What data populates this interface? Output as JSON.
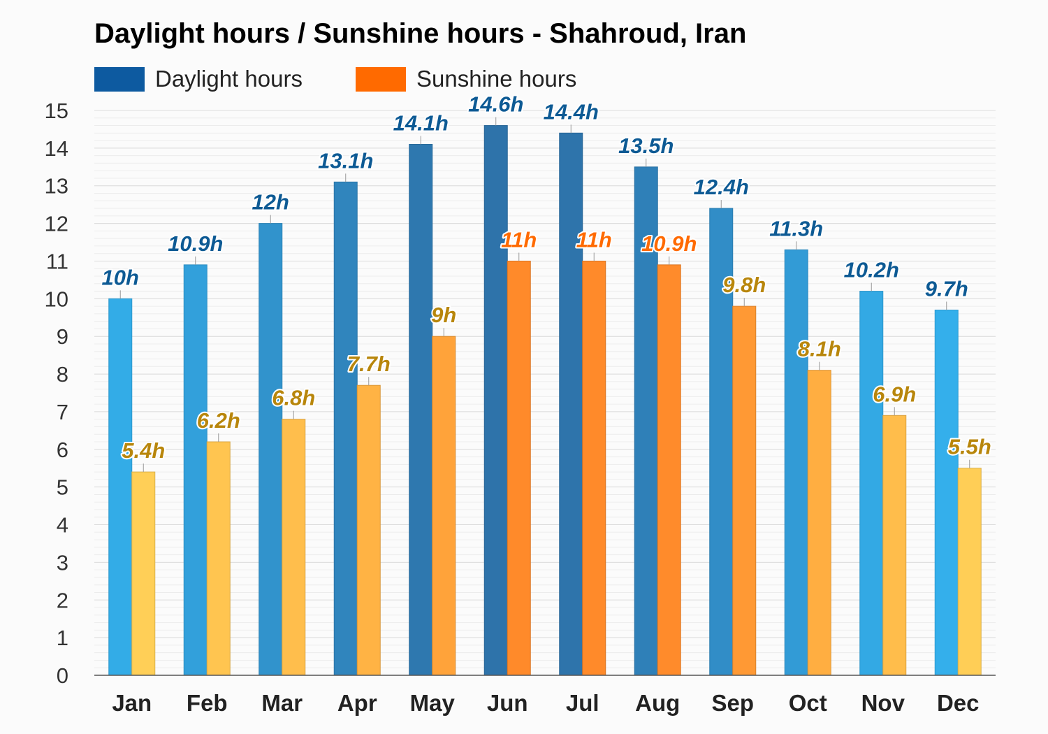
{
  "colors": {
    "daylight": "#0d5aa0",
    "sunshine": "#ff6a00",
    "daylight_label": "#0d5a94",
    "sunshine_label": "#b8860b",
    "sunshine_label_hot": "#ff6a00"
  },
  "chart_data": {
    "type": "bar",
    "title": "Daylight hours / Sunshine hours - Shahroud, Iran",
    "categories": [
      "Jan",
      "Feb",
      "Mar",
      "Apr",
      "May",
      "Jun",
      "Jul",
      "Aug",
      "Sep",
      "Oct",
      "Nov",
      "Dec"
    ],
    "series": [
      {
        "name": "Daylight hours",
        "values": [
          10,
          10.9,
          12,
          13.1,
          14.1,
          14.6,
          14.4,
          13.5,
          12.4,
          11.3,
          10.2,
          9.7
        ],
        "labels": [
          "10h",
          "10.9h",
          "12h",
          "13.1h",
          "14.1h",
          "14.6h",
          "14.4h",
          "13.5h",
          "12.4h",
          "11.3h",
          "10.2h",
          "9.7h"
        ]
      },
      {
        "name": "Sunshine hours",
        "values": [
          5.4,
          6.2,
          6.8,
          7.7,
          9,
          11,
          11,
          10.9,
          9.8,
          8.1,
          6.9,
          5.5
        ],
        "labels": [
          "5.4h",
          "6.2h",
          "6.8h",
          "7.7h",
          "9h",
          "11h",
          "11h",
          "10.9h",
          "9.8h",
          "8.1h",
          "6.9h",
          "5.5h"
        ]
      }
    ],
    "ylim": [
      0,
      15
    ],
    "yticks": [
      0,
      1,
      2,
      3,
      4,
      5,
      6,
      7,
      8,
      9,
      10,
      11,
      12,
      13,
      14,
      15
    ],
    "grid": true,
    "legend_position": "top-left"
  }
}
